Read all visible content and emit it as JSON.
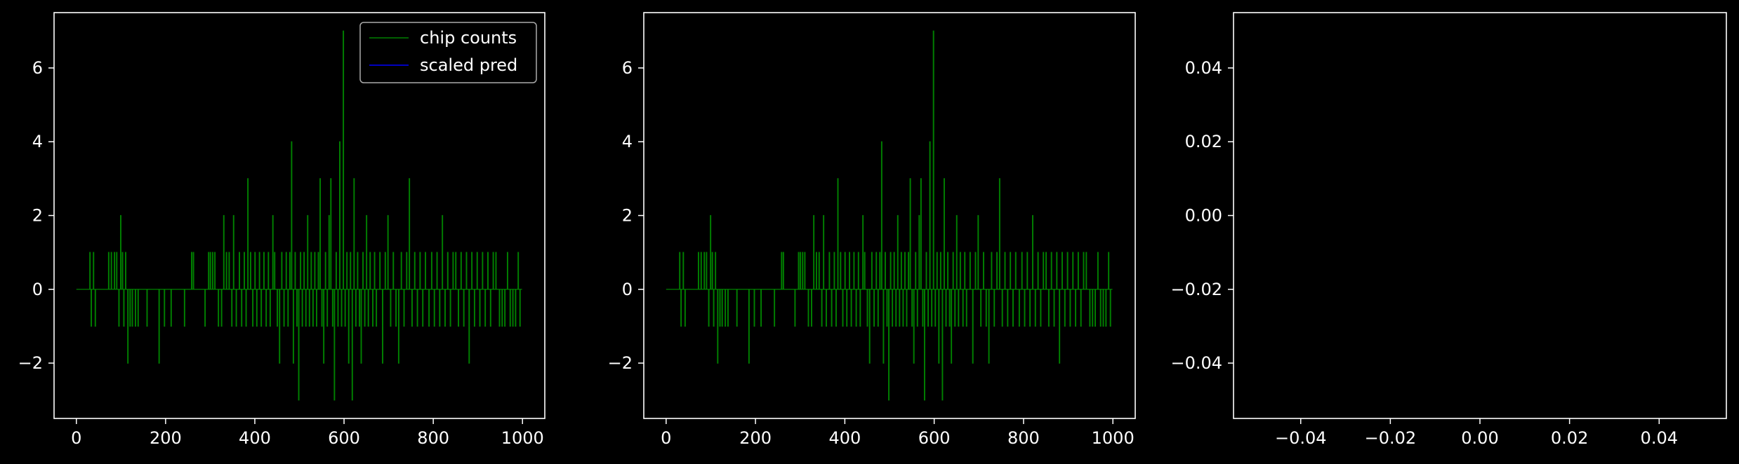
{
  "chart_data": [
    {
      "type": "line",
      "title": "",
      "xlabel": "",
      "ylabel": "",
      "xlim": [
        -50,
        1050
      ],
      "ylim": [
        -3.5,
        7.5
      ],
      "xticks": [
        0,
        200,
        400,
        600,
        800,
        1000
      ],
      "xtick_labels": [
        "0",
        "200",
        "400",
        "600",
        "800",
        "1000"
      ],
      "yticks": [
        -2,
        0,
        2,
        4,
        6
      ],
      "ytick_labels": [
        "−2",
        "0",
        "2",
        "4",
        "6"
      ],
      "grid": false,
      "legend": {
        "placement": "top-right",
        "entries": [
          "chip counts",
          "scaled pred"
        ]
      },
      "series": [
        {
          "name": "chip counts",
          "color": "#008000",
          "style": "step",
          "x_range": [
            0,
            999
          ],
          "baseline": 0,
          "nonzero_points": [
            {
              "x": 30,
              "y": 1
            },
            {
              "x": 33,
              "y": -1
            },
            {
              "x": 38,
              "y": 1
            },
            {
              "x": 42,
              "y": -1
            },
            {
              "x": 72,
              "y": 1
            },
            {
              "x": 78,
              "y": 1
            },
            {
              "x": 85,
              "y": 1
            },
            {
              "x": 90,
              "y": 1
            },
            {
              "x": 95,
              "y": -1
            },
            {
              "x": 99,
              "y": 2
            },
            {
              "x": 103,
              "y": 1
            },
            {
              "x": 106,
              "y": -1
            },
            {
              "x": 110,
              "y": 1
            },
            {
              "x": 115,
              "y": -2
            },
            {
              "x": 120,
              "y": -1
            },
            {
              "x": 125,
              "y": -1
            },
            {
              "x": 132,
              "y": -1
            },
            {
              "x": 138,
              "y": -1
            },
            {
              "x": 158,
              "y": -1
            },
            {
              "x": 185,
              "y": -2
            },
            {
              "x": 197,
              "y": -1
            },
            {
              "x": 212,
              "y": -1
            },
            {
              "x": 242,
              "y": -1
            },
            {
              "x": 258,
              "y": 1
            },
            {
              "x": 262,
              "y": 1
            },
            {
              "x": 288,
              "y": -1
            },
            {
              "x": 296,
              "y": 1
            },
            {
              "x": 300,
              "y": 1
            },
            {
              "x": 305,
              "y": 1
            },
            {
              "x": 310,
              "y": 1
            },
            {
              "x": 318,
              "y": -1
            },
            {
              "x": 325,
              "y": -1
            },
            {
              "x": 330,
              "y": 2
            },
            {
              "x": 336,
              "y": 1
            },
            {
              "x": 342,
              "y": 1
            },
            {
              "x": 348,
              "y": -1
            },
            {
              "x": 352,
              "y": 2
            },
            {
              "x": 358,
              "y": -1
            },
            {
              "x": 365,
              "y": 1
            },
            {
              "x": 370,
              "y": -1
            },
            {
              "x": 376,
              "y": 1
            },
            {
              "x": 380,
              "y": -1
            },
            {
              "x": 384,
              "y": 3
            },
            {
              "x": 390,
              "y": 1
            },
            {
              "x": 395,
              "y": -1
            },
            {
              "x": 400,
              "y": 1
            },
            {
              "x": 404,
              "y": -1
            },
            {
              "x": 410,
              "y": 1
            },
            {
              "x": 414,
              "y": -1
            },
            {
              "x": 420,
              "y": 1
            },
            {
              "x": 425,
              "y": -1
            },
            {
              "x": 430,
              "y": 1
            },
            {
              "x": 434,
              "y": -1
            },
            {
              "x": 440,
              "y": 2
            },
            {
              "x": 444,
              "y": 1
            },
            {
              "x": 450,
              "y": -1
            },
            {
              "x": 455,
              "y": -2
            },
            {
              "x": 460,
              "y": 1
            },
            {
              "x": 465,
              "y": -1
            },
            {
              "x": 470,
              "y": 1
            },
            {
              "x": 474,
              "y": -1
            },
            {
              "x": 478,
              "y": 1
            },
            {
              "x": 482,
              "y": 4
            },
            {
              "x": 486,
              "y": -2
            },
            {
              "x": 490,
              "y": 1
            },
            {
              "x": 494,
              "y": -1
            },
            {
              "x": 498,
              "y": -3
            },
            {
              "x": 502,
              "y": 1
            },
            {
              "x": 506,
              "y": -1
            },
            {
              "x": 510,
              "y": 1
            },
            {
              "x": 514,
              "y": -1
            },
            {
              "x": 518,
              "y": 2
            },
            {
              "x": 522,
              "y": -1
            },
            {
              "x": 526,
              "y": 1
            },
            {
              "x": 530,
              "y": -1
            },
            {
              "x": 534,
              "y": 1
            },
            {
              "x": 538,
              "y": -1
            },
            {
              "x": 542,
              "y": 1
            },
            {
              "x": 546,
              "y": 3
            },
            {
              "x": 550,
              "y": -1
            },
            {
              "x": 554,
              "y": -2
            },
            {
              "x": 558,
              "y": 1
            },
            {
              "x": 562,
              "y": -1
            },
            {
              "x": 566,
              "y": 2
            },
            {
              "x": 570,
              "y": 3
            },
            {
              "x": 574,
              "y": -1
            },
            {
              "x": 578,
              "y": -3
            },
            {
              "x": 582,
              "y": 1
            },
            {
              "x": 586,
              "y": -1
            },
            {
              "x": 590,
              "y": 4
            },
            {
              "x": 594,
              "y": -1
            },
            {
              "x": 598,
              "y": 7
            },
            {
              "x": 602,
              "y": -1
            },
            {
              "x": 606,
              "y": 1
            },
            {
              "x": 610,
              "y": -2
            },
            {
              "x": 614,
              "y": 1
            },
            {
              "x": 618,
              "y": -3
            },
            {
              "x": 622,
              "y": 3
            },
            {
              "x": 626,
              "y": -1
            },
            {
              "x": 630,
              "y": 1
            },
            {
              "x": 634,
              "y": -1
            },
            {
              "x": 638,
              "y": -2
            },
            {
              "x": 642,
              "y": 1
            },
            {
              "x": 646,
              "y": -1
            },
            {
              "x": 650,
              "y": 2
            },
            {
              "x": 654,
              "y": -1
            },
            {
              "x": 658,
              "y": 1
            },
            {
              "x": 664,
              "y": -1
            },
            {
              "x": 668,
              "y": 1
            },
            {
              "x": 672,
              "y": -1
            },
            {
              "x": 680,
              "y": 1
            },
            {
              "x": 686,
              "y": -2
            },
            {
              "x": 692,
              "y": 1
            },
            {
              "x": 698,
              "y": 2
            },
            {
              "x": 704,
              "y": -1
            },
            {
              "x": 710,
              "y": 1
            },
            {
              "x": 716,
              "y": -1
            },
            {
              "x": 722,
              "y": -2
            },
            {
              "x": 728,
              "y": 1
            },
            {
              "x": 734,
              "y": -1
            },
            {
              "x": 740,
              "y": 1
            },
            {
              "x": 746,
              "y": 3
            },
            {
              "x": 752,
              "y": -1
            },
            {
              "x": 758,
              "y": 1
            },
            {
              "x": 764,
              "y": -1
            },
            {
              "x": 770,
              "y": 1
            },
            {
              "x": 776,
              "y": -1
            },
            {
              "x": 782,
              "y": 1
            },
            {
              "x": 790,
              "y": -1
            },
            {
              "x": 796,
              "y": 1
            },
            {
              "x": 802,
              "y": -1
            },
            {
              "x": 808,
              "y": 1
            },
            {
              "x": 814,
              "y": -1
            },
            {
              "x": 820,
              "y": 2
            },
            {
              "x": 826,
              "y": -1
            },
            {
              "x": 832,
              "y": 1
            },
            {
              "x": 838,
              "y": -1
            },
            {
              "x": 844,
              "y": 1
            },
            {
              "x": 850,
              "y": 1
            },
            {
              "x": 856,
              "y": -1
            },
            {
              "x": 862,
              "y": 1
            },
            {
              "x": 868,
              "y": -1
            },
            {
              "x": 874,
              "y": 1
            },
            {
              "x": 880,
              "y": -2
            },
            {
              "x": 886,
              "y": 1
            },
            {
              "x": 892,
              "y": -1
            },
            {
              "x": 898,
              "y": 1
            },
            {
              "x": 904,
              "y": -1
            },
            {
              "x": 910,
              "y": 1
            },
            {
              "x": 916,
              "y": -1
            },
            {
              "x": 922,
              "y": 1
            },
            {
              "x": 928,
              "y": -1
            },
            {
              "x": 934,
              "y": 1
            },
            {
              "x": 940,
              "y": 1
            },
            {
              "x": 948,
              "y": -1
            },
            {
              "x": 954,
              "y": -1
            },
            {
              "x": 960,
              "y": -1
            },
            {
              "x": 966,
              "y": 1
            },
            {
              "x": 972,
              "y": -1
            },
            {
              "x": 978,
              "y": -1
            },
            {
              "x": 984,
              "y": -1
            },
            {
              "x": 990,
              "y": 1
            },
            {
              "x": 994,
              "y": -1
            }
          ]
        },
        {
          "name": "scaled pred",
          "color": "#0000ff",
          "values": []
        }
      ]
    },
    {
      "type": "line",
      "title": "",
      "xlabel": "",
      "ylabel": "",
      "xlim": [
        -50,
        1050
      ],
      "ylim": [
        -3.5,
        7.5
      ],
      "xticks": [
        0,
        200,
        400,
        600,
        800,
        1000
      ],
      "xtick_labels": [
        "0",
        "200",
        "400",
        "600",
        "800",
        "1000"
      ],
      "yticks": [
        -2,
        0,
        2,
        4,
        6
      ],
      "ytick_labels": [
        "−2",
        "0",
        "2",
        "4",
        "6"
      ],
      "grid": false,
      "legend": null,
      "series": [
        {
          "color": "#008000",
          "style": "step",
          "same_data_as_panel": 1
        }
      ]
    },
    {
      "type": "line",
      "title": "",
      "xlabel": "",
      "ylabel": "",
      "xlim": [
        -0.055,
        0.055
      ],
      "ylim": [
        -0.055,
        0.055
      ],
      "xticks": [
        -0.04,
        -0.02,
        0.0,
        0.02,
        0.04
      ],
      "xtick_labels": [
        "−0.04",
        "−0.02",
        "0.00",
        "0.02",
        "0.04"
      ],
      "yticks": [
        -0.04,
        -0.02,
        0.0,
        0.02,
        0.04
      ],
      "ytick_labels": [
        "−0.04",
        "−0.02",
        "0.00",
        "0.02",
        "0.04"
      ],
      "grid": false,
      "legend": null,
      "series": []
    }
  ]
}
